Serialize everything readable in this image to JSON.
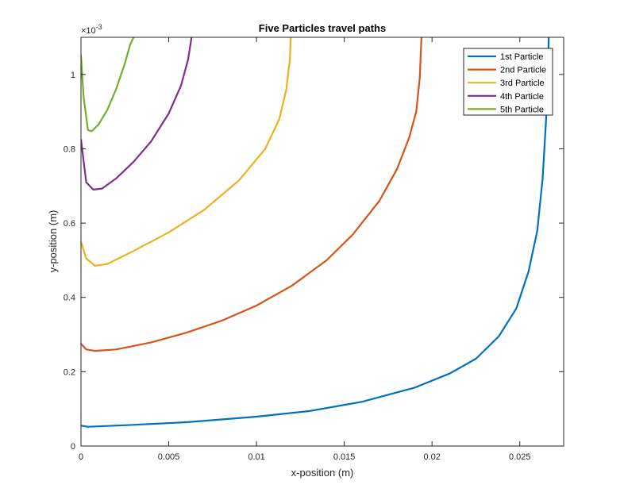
{
  "chart_data": {
    "type": "line",
    "title": "Five Particles travel paths",
    "xlabel": "x-position (m)",
    "ylabel": "y-position (m)",
    "y_exponent_label": "×10",
    "y_exponent_power": "-3",
    "xlim": [
      0,
      0.0275
    ],
    "ylim": [
      0,
      0.0011
    ],
    "x_ticks": [
      0,
      0.005,
      0.01,
      0.015,
      0.02,
      0.025
    ],
    "x_tick_labels": [
      "0",
      "0.005",
      "0.01",
      "0.015",
      "0.02",
      "0.025"
    ],
    "y_ticks": [
      0,
      0.0002,
      0.0004,
      0.0006,
      0.0008,
      0.001
    ],
    "y_tick_labels": [
      "0",
      "0.2",
      "0.4",
      "0.6",
      "0.8",
      "1"
    ],
    "grid": false,
    "legend_position": "top-right",
    "series": [
      {
        "name": "1st Particle",
        "color": "#0072BD",
        "points": [
          [
            0,
            5.5e-05
          ],
          [
            0.0004,
            5.2e-05
          ],
          [
            0.001,
            5.3e-05
          ],
          [
            0.003,
            5.7e-05
          ],
          [
            0.006,
            6.4e-05
          ],
          [
            0.01,
            7.9e-05
          ],
          [
            0.013,
            9.4e-05
          ],
          [
            0.016,
            0.000119
          ],
          [
            0.019,
            0.000157
          ],
          [
            0.021,
            0.000195
          ],
          [
            0.0225,
            0.000235
          ],
          [
            0.0238,
            0.000295
          ],
          [
            0.0248,
            0.00037
          ],
          [
            0.0255,
            0.00047
          ],
          [
            0.026,
            0.00058
          ],
          [
            0.0263,
            0.00072
          ],
          [
            0.0265,
            0.00088
          ],
          [
            0.0266,
            0.001
          ],
          [
            0.02665,
            0.0011
          ]
        ]
      },
      {
        "name": "2nd Particle",
        "color": "#D95319",
        "points": [
          [
            0,
            0.000275
          ],
          [
            0.0003,
            0.00026
          ],
          [
            0.0008,
            0.000256
          ],
          [
            0.002,
            0.00026
          ],
          [
            0.004,
            0.000279
          ],
          [
            0.006,
            0.000305
          ],
          [
            0.008,
            0.000337
          ],
          [
            0.01,
            0.000378
          ],
          [
            0.012,
            0.000431
          ],
          [
            0.014,
            0.0005
          ],
          [
            0.0155,
            0.00057
          ],
          [
            0.017,
            0.00066
          ],
          [
            0.018,
            0.000745
          ],
          [
            0.0187,
            0.00083
          ],
          [
            0.0191,
            0.0009
          ],
          [
            0.0193,
            0.00099
          ],
          [
            0.0194,
            0.0011
          ]
        ]
      },
      {
        "name": "3rd Particle",
        "color": "#EDB120",
        "points": [
          [
            0,
            0.00055
          ],
          [
            0.0003,
            0.000505
          ],
          [
            0.0008,
            0.000485
          ],
          [
            0.0015,
            0.00049
          ],
          [
            0.003,
            0.000525
          ],
          [
            0.005,
            0.000575
          ],
          [
            0.007,
            0.000635
          ],
          [
            0.009,
            0.000715
          ],
          [
            0.0105,
            0.0008
          ],
          [
            0.0113,
            0.00088
          ],
          [
            0.0117,
            0.00096
          ],
          [
            0.0119,
            0.00104
          ],
          [
            0.01195,
            0.0011
          ]
        ]
      },
      {
        "name": "4th Particle",
        "color": "#7E2F8E",
        "points": [
          [
            0,
            0.000825
          ],
          [
            0.0003,
            0.00071
          ],
          [
            0.0007,
            0.00069
          ],
          [
            0.0012,
            0.000693
          ],
          [
            0.002,
            0.00072
          ],
          [
            0.003,
            0.000765
          ],
          [
            0.004,
            0.00082
          ],
          [
            0.005,
            0.000895
          ],
          [
            0.0057,
            0.00097
          ],
          [
            0.0061,
            0.00104
          ],
          [
            0.0063,
            0.0011
          ]
        ]
      },
      {
        "name": "5th Particle",
        "color": "#77AC30",
        "points": [
          [
            0,
            0.00105
          ],
          [
            0.00015,
            0.00094
          ],
          [
            0.0004,
            0.00085
          ],
          [
            0.0006,
            0.000847
          ],
          [
            0.001,
            0.000865
          ],
          [
            0.0015,
            0.000905
          ],
          [
            0.002,
            0.00096
          ],
          [
            0.0025,
            0.00103
          ],
          [
            0.0028,
            0.00108
          ],
          [
            0.003,
            0.0011
          ]
        ]
      }
    ]
  }
}
